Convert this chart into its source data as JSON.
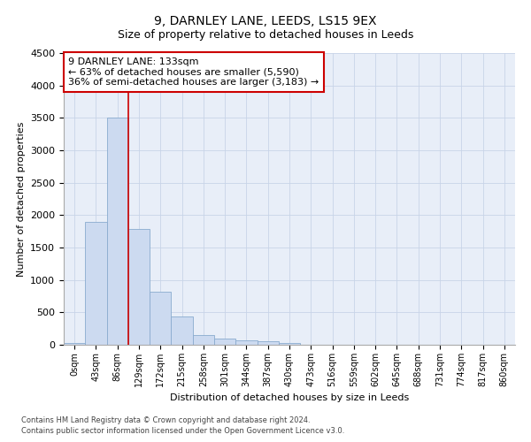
{
  "title1": "9, DARNLEY LANE, LEEDS, LS15 9EX",
  "title2": "Size of property relative to detached houses in Leeds",
  "xlabel": "Distribution of detached houses by size in Leeds",
  "ylabel": "Number of detached properties",
  "bar_labels": [
    "0sqm",
    "43sqm",
    "86sqm",
    "129sqm",
    "172sqm",
    "215sqm",
    "258sqm",
    "301sqm",
    "344sqm",
    "387sqm",
    "430sqm",
    "473sqm",
    "516sqm",
    "559sqm",
    "602sqm",
    "645sqm",
    "688sqm",
    "731sqm",
    "774sqm",
    "817sqm",
    "860sqm"
  ],
  "bar_values": [
    25,
    1900,
    3500,
    1780,
    820,
    440,
    155,
    95,
    70,
    55,
    30,
    0,
    0,
    0,
    0,
    0,
    0,
    0,
    0,
    0,
    0
  ],
  "bar_color": "#ccdaf0",
  "bar_edge_color": "#8aabcf",
  "vline_color": "#cc0000",
  "vline_x": 2.5,
  "ylim": [
    0,
    4500
  ],
  "annotation_text": "9 DARNLEY LANE: 133sqm\n← 63% of detached houses are smaller (5,590)\n36% of semi-detached houses are larger (3,183) →",
  "annotation_box_facecolor": "#ffffff",
  "annotation_box_edgecolor": "#cc0000",
  "footer1": "Contains HM Land Registry data © Crown copyright and database right 2024.",
  "footer2": "Contains public sector information licensed under the Open Government Licence v3.0.",
  "bg_color": "#ffffff",
  "plot_bg_color": "#e8eef8",
  "grid_color": "#c8d4e8",
  "title1_fontsize": 10,
  "title2_fontsize": 9,
  "axis_label_fontsize": 8,
  "tick_fontsize": 7,
  "annotation_fontsize": 8,
  "footer_fontsize": 6
}
